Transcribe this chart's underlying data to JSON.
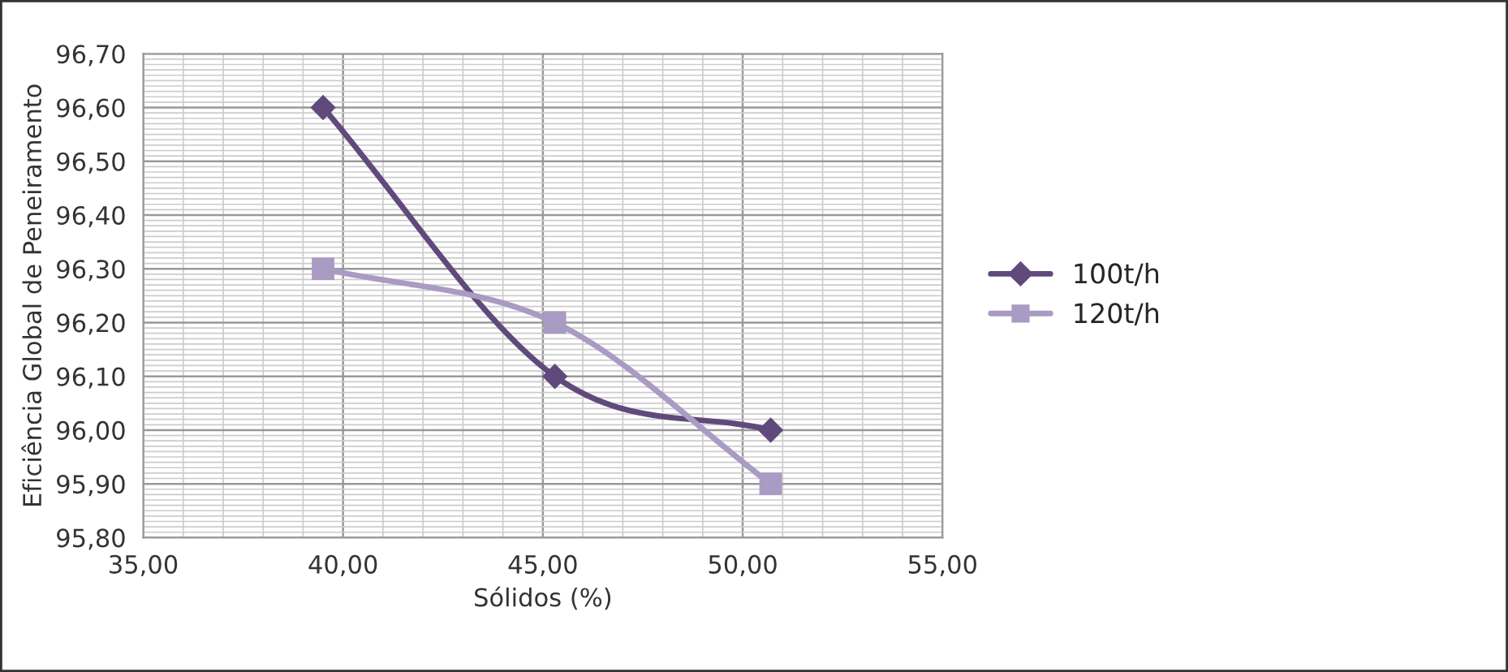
{
  "chart_data": {
    "type": "line",
    "xlabel": "Sólidos (%)",
    "ylabel": "Eficiência Global de Peneiramento",
    "xlim": [
      35,
      55
    ],
    "ylim": [
      95.8,
      96.7
    ],
    "xticks": [
      {
        "value": 35,
        "label": "35,00"
      },
      {
        "value": 40,
        "label": "40,00"
      },
      {
        "value": 45,
        "label": "45,00"
      },
      {
        "value": 50,
        "label": "50,00"
      },
      {
        "value": 55,
        "label": "55,00"
      }
    ],
    "yticks": [
      {
        "value": 95.8,
        "label": "95,80"
      },
      {
        "value": 95.9,
        "label": "95,90"
      },
      {
        "value": 96.0,
        "label": "96,00"
      },
      {
        "value": 96.1,
        "label": "96,10"
      },
      {
        "value": 96.2,
        "label": "96,20"
      },
      {
        "value": 96.3,
        "label": "96,30"
      },
      {
        "value": 96.4,
        "label": "96,40"
      },
      {
        "value": 96.5,
        "label": "96,50"
      },
      {
        "value": 96.6,
        "label": "96,60"
      },
      {
        "value": 96.7,
        "label": "96,70"
      }
    ],
    "grid": true,
    "legend": "right",
    "series": [
      {
        "name": "100t/h",
        "color": "#604a7b",
        "marker": "diamond",
        "x": [
          39.5,
          45.3,
          50.7
        ],
        "values": [
          96.6,
          96.1,
          96.0
        ]
      },
      {
        "name": "120t/h",
        "color": "#a99bc3",
        "marker": "square",
        "x": [
          39.5,
          45.3,
          50.7
        ],
        "values": [
          96.3,
          96.2,
          95.9
        ]
      }
    ]
  }
}
